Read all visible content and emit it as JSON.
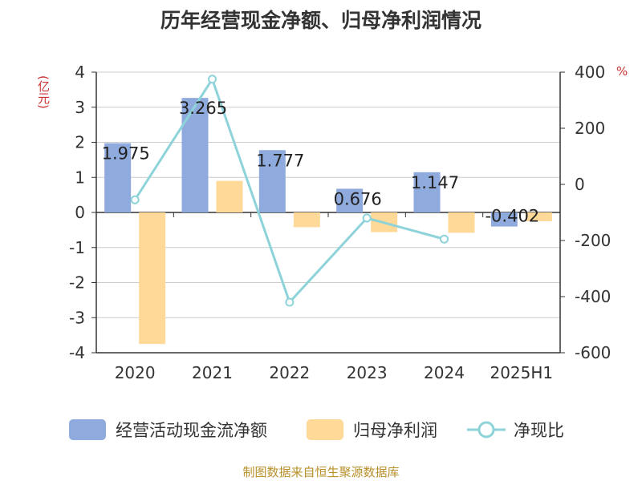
{
  "title": "历年经营现金净额、归母净利润情况",
  "left_unit": "(亿元)",
  "right_unit": "%",
  "source": "制图数据来自恒生聚源数据库",
  "colors": {
    "operating_cash_flow": "#8faadc",
    "net_profit": "#ffd998",
    "net_ratio": "#8dd3d9",
    "grid": "#cccccc",
    "axis": "#333333"
  },
  "chart_data": {
    "type": "bar",
    "title": "历年经营现金净额、归母净利润情况",
    "categories": [
      "2020",
      "2021",
      "2022",
      "2023",
      "2024",
      "2025H1"
    ],
    "y_left": {
      "label": "(亿元)",
      "range": [
        -4,
        4
      ],
      "ticks": [
        -4,
        -3,
        -2,
        -1,
        0,
        1,
        2,
        3,
        4
      ]
    },
    "y_right": {
      "label": "%",
      "range": [
        -600,
        400
      ],
      "ticks": [
        -600,
        -400,
        -200,
        0,
        200,
        400
      ]
    },
    "grid": true,
    "legend_position": "bottom",
    "series": [
      {
        "name": "经营活动现金流净额",
        "type": "bar",
        "axis": "left",
        "values": [
          1.975,
          3.265,
          1.777,
          0.676,
          1.147,
          -0.402
        ],
        "labels": [
          "1.975",
          "3.265",
          "1.777",
          "0.676",
          "1.147",
          "-0.402"
        ]
      },
      {
        "name": "归母净利润",
        "type": "bar",
        "axis": "left",
        "values": [
          -3.75,
          0.9,
          -0.42,
          -0.56,
          -0.58,
          -0.25
        ]
      },
      {
        "name": "净现比",
        "type": "line",
        "axis": "right",
        "values": [
          -55,
          375,
          -420,
          -120,
          -195,
          null
        ]
      }
    ]
  }
}
